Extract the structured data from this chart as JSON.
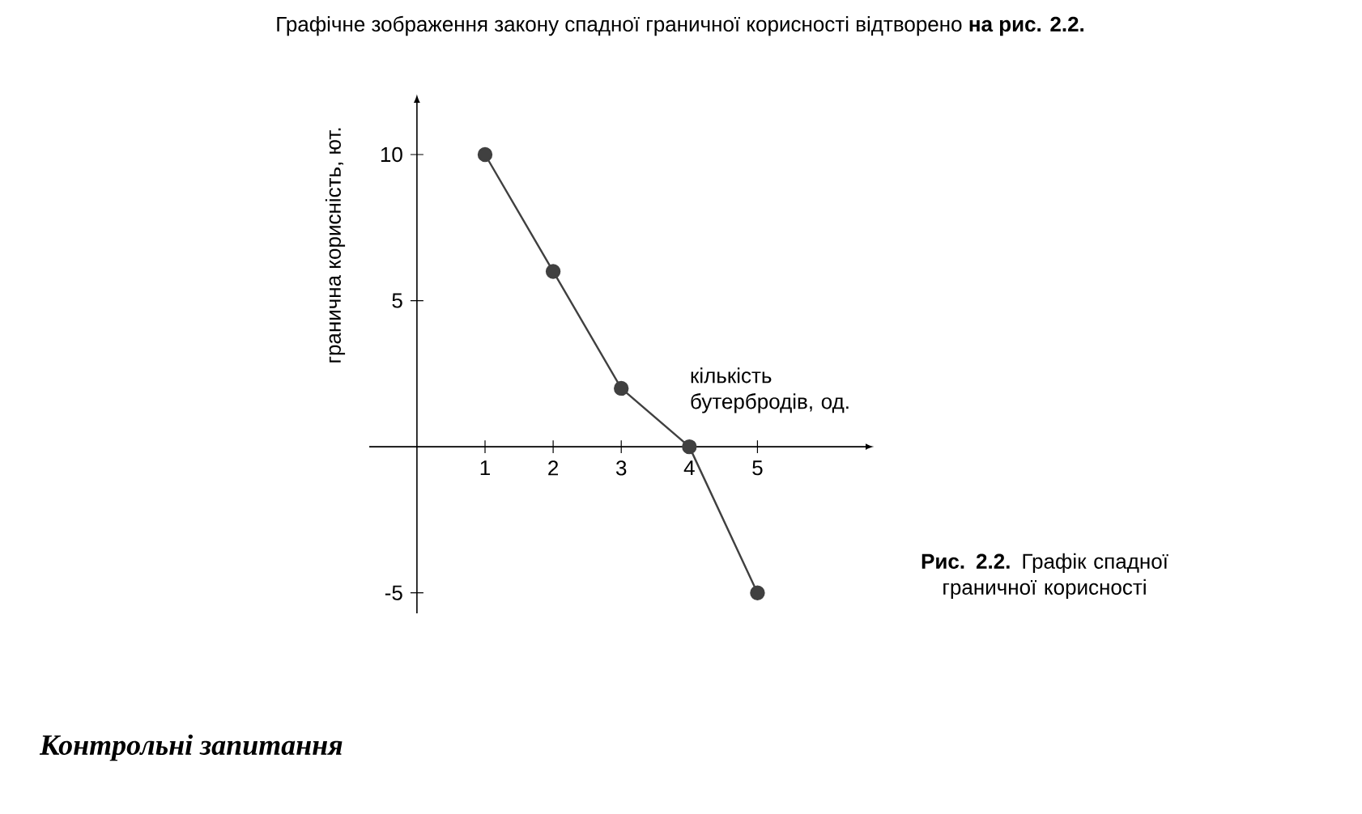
{
  "chart_data": {
    "type": "line",
    "xlabel": "кількість бутербродів, од.",
    "ylabel": "гранична корисність, ют.",
    "x": [
      1,
      2,
      3,
      4,
      5
    ],
    "series": [
      {
        "color": "#404040",
        "values": [
          10,
          6,
          2,
          0,
          -5
        ]
      }
    ],
    "xlim": [
      -0.7,
      6.6
    ],
    "ylim": [
      -5.7,
      11.8
    ],
    "xticks": [
      1,
      2,
      3,
      4,
      5
    ],
    "yticks": [
      10,
      5,
      -5
    ],
    "grid": false,
    "marker": "circle",
    "line_style": "solid",
    "annotations": [
      "Графічне зображення закону спадної граничної корисності відтворено **на рис. 2.2.**",
      "**Рис. 2.2.** Графік спадної граничної корисності",
      "Контрольні запитання"
    ]
  }
}
